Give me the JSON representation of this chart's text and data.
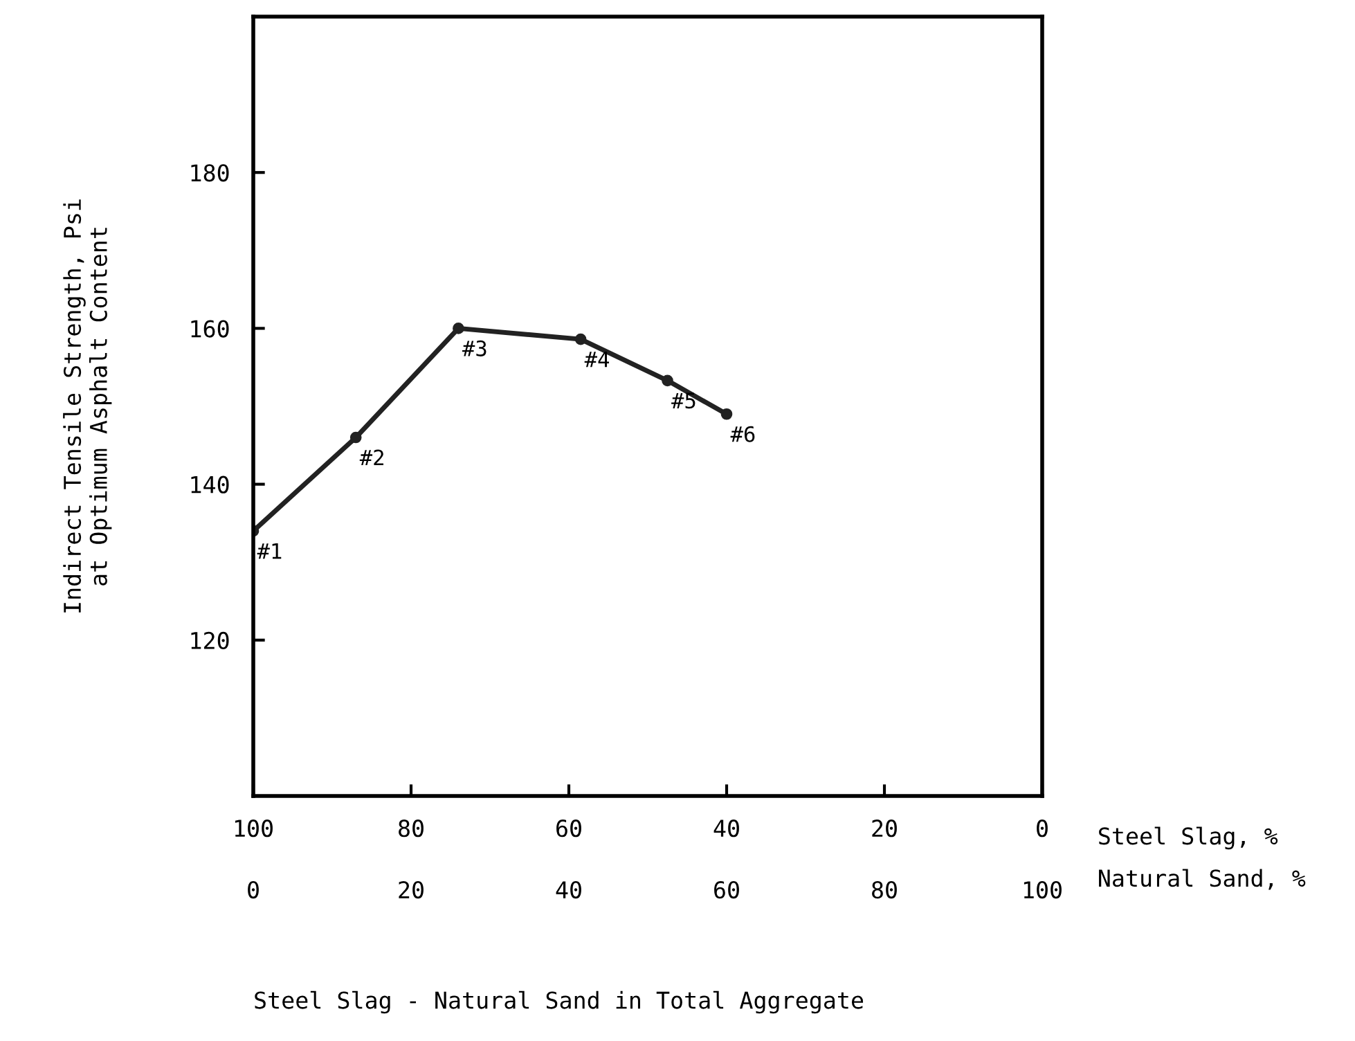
{
  "chart_data": {
    "type": "line",
    "title": "Steel Slag - Natural Sand in Total Aggregate",
    "xlabel": "Steel Slag, %",
    "x2label": "Natural Sand, %",
    "ylabel": "Indirect Tensile Strength, Psi\nat Optimum Asphalt Content",
    "x": [
      100,
      87,
      74,
      58.5,
      47.5,
      40
    ],
    "series": [
      {
        "color": "#222222",
        "values": [
          134,
          146,
          160,
          158.6,
          153.3,
          149
        ]
      }
    ],
    "xlim": [
      100,
      0
    ],
    "xticks": [
      100,
      80,
      60,
      40,
      20,
      0
    ],
    "x2lim": [
      0,
      100
    ],
    "x2ticks": [
      0,
      20,
      40,
      60,
      80,
      100
    ],
    "ylim": [
      100,
      200
    ],
    "yticks": [
      120,
      140,
      160,
      180
    ],
    "marker": "circle",
    "line_style": "solid",
    "grid": false,
    "annotations": [
      {
        "text": "#1",
        "x": 100,
        "y": 134
      },
      {
        "text": "#2",
        "x": 87,
        "y": 146
      },
      {
        "text": "#3",
        "x": 74,
        "y": 160
      },
      {
        "text": "#4",
        "x": 58.5,
        "y": 158.6
      },
      {
        "text": "#5",
        "x": 47.5,
        "y": 153.3
      },
      {
        "text": "#6",
        "x": 40,
        "y": 149
      }
    ]
  }
}
